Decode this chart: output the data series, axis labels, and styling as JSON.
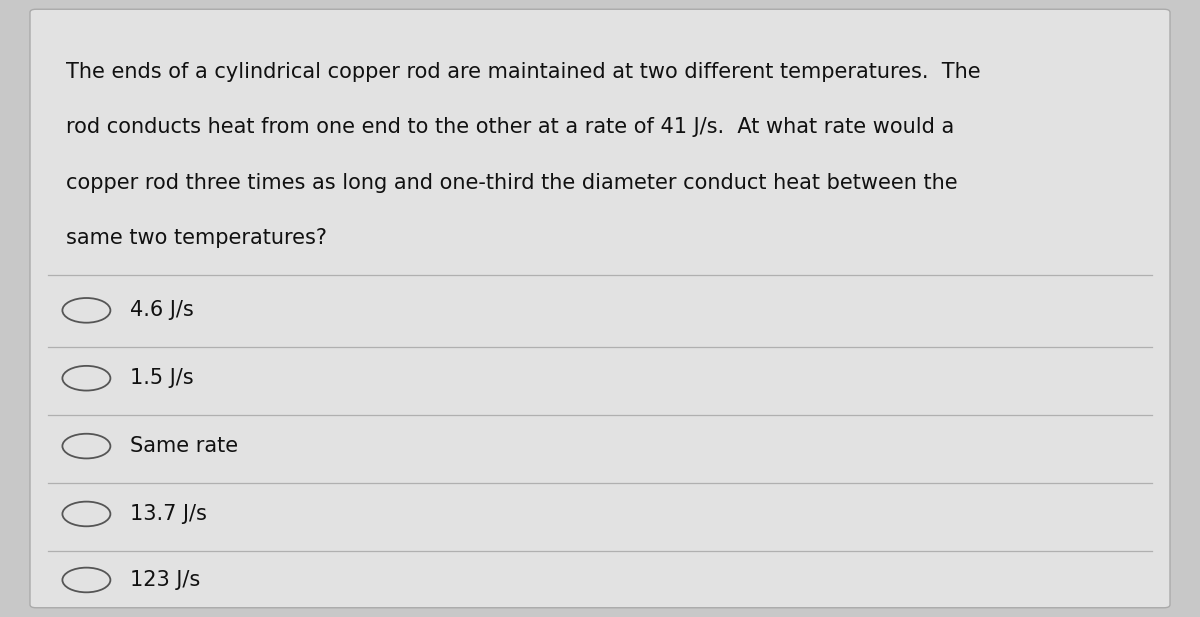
{
  "background_color": "#c8c8c8",
  "card_color": "#e2e2e2",
  "question_text_lines": [
    "The ends of a cylindrical copper rod are maintained at two different temperatures.  The",
    "rod conducts heat from one end to the other at a rate of 41 J/s.  At what rate would a",
    "copper rod three times as long and one-third the diameter conduct heat between the",
    "same two temperatures?"
  ],
  "options": [
    "4.6 J/s",
    "1.5 J/s",
    "Same rate",
    "13.7 J/s",
    "123 J/s"
  ],
  "divider_color": "#b0b0b0",
  "text_color": "#111111",
  "circle_color": "#555555",
  "question_fontsize": 15.0,
  "option_fontsize": 15.0,
  "font_family": "DejaVu Sans"
}
